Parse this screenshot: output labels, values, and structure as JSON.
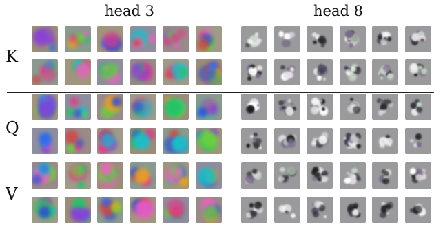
{
  "heads": [
    {
      "title": "head 3",
      "style": "color"
    },
    {
      "title": "head 8",
      "style": "gray"
    }
  ],
  "rows": [
    {
      "label": "K"
    },
    {
      "label": "Q"
    },
    {
      "label": "V"
    }
  ]
}
